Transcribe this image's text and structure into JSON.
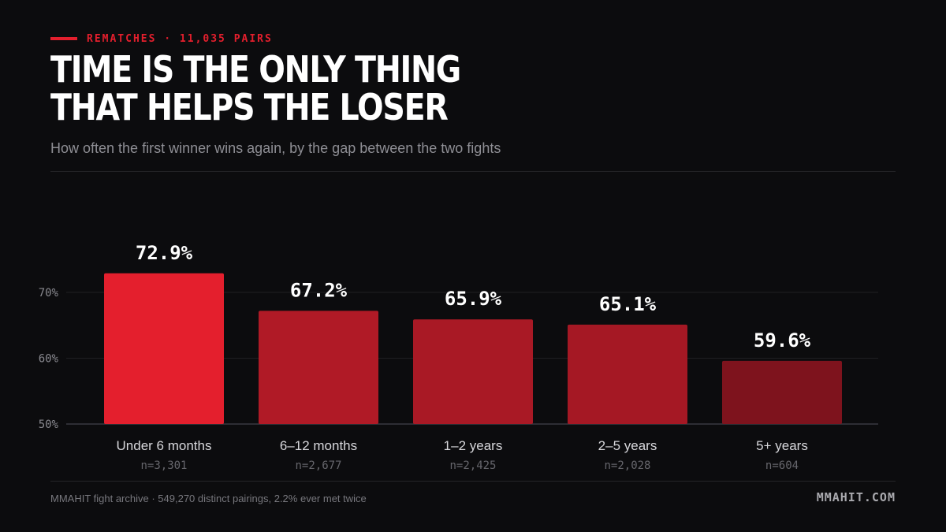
{
  "header": {
    "kicker": "REMATCHES · 11,035 PAIRS",
    "title_line1": "TIME IS THE ONLY THING",
    "title_line2": "THAT HELPS THE LOSER",
    "subtitle": "How often the first winner wins again, by the gap between the two fights"
  },
  "footer": {
    "source": "MMAHIT fight archive · 549,270 distinct pairings, 2.2% ever met twice",
    "brand": "MMAHIT.COM"
  },
  "chart_data": {
    "type": "bar",
    "categories": [
      "Under 6 months",
      "6–12 months",
      "1–2 years",
      "2–5 years",
      "5+ years"
    ],
    "values": [
      72.9,
      67.2,
      65.9,
      65.1,
      59.6
    ],
    "value_labels": [
      "72.9%",
      "67.2%",
      "65.9%",
      "65.1%",
      "59.6%"
    ],
    "sample_sizes": [
      "n=3,301",
      "n=2,677",
      "n=2,425",
      "n=2,028",
      "n=604"
    ],
    "bar_colors": [
      "#e41f2d",
      "#b01a26",
      "#a91925",
      "#a51824",
      "#7e131d"
    ],
    "ylim": [
      50,
      76
    ],
    "yticks": [
      50,
      60,
      70
    ],
    "ytick_labels": [
      "50%",
      "60%",
      "70%"
    ],
    "grid": true
  }
}
